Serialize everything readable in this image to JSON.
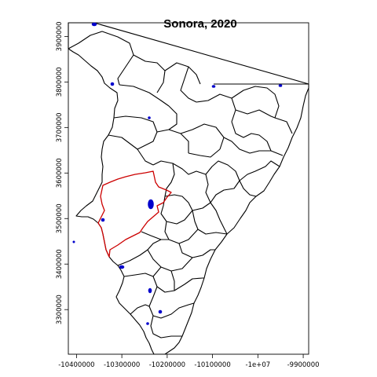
{
  "title": "Sonora, 2020",
  "x_axis": {
    "ticks": [
      {
        "value": -10400000,
        "label": "-10400000"
      },
      {
        "value": -10300000,
        "label": "-10300000"
      },
      {
        "value": -10200000,
        "label": "-10200000"
      },
      {
        "value": -10100000,
        "label": "-10100000"
      },
      {
        "value": -10000000,
        "label": "-1e+07"
      },
      {
        "value": -9900000,
        "label": "-9900000"
      }
    ],
    "range": [
      -10418000,
      -9888000
    ]
  },
  "y_axis": {
    "ticks": [
      {
        "value": 3300000,
        "label": "3300000"
      },
      {
        "value": 3400000,
        "label": "3400000"
      },
      {
        "value": 3500000,
        "label": "3500000"
      },
      {
        "value": 3600000,
        "label": "3600000"
      },
      {
        "value": 3700000,
        "label": "3700000"
      },
      {
        "value": 3800000,
        "label": "3800000"
      },
      {
        "value": 3900000,
        "label": "3900000"
      }
    ],
    "range": [
      3202000,
      3930000
    ]
  },
  "layers": {
    "outline_color": "#000000",
    "highlight_color": "#cc0000",
    "water_color": "#0000cc"
  }
}
